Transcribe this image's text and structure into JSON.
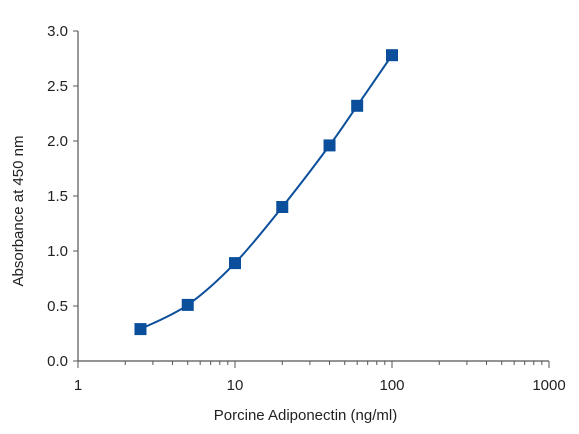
{
  "chart_data": {
    "type": "scatter",
    "title": "",
    "xlabel": "Porcine Adiponectin (ng/ml)",
    "ylabel": "Absorbance at 450 nm",
    "x_scale": "log",
    "xlim": [
      1,
      1000
    ],
    "ylim": [
      0,
      3.0
    ],
    "x_ticks": [
      1,
      10,
      100,
      1000
    ],
    "x_tick_labels": [
      "1",
      "10",
      "100",
      "1000"
    ],
    "y_ticks": [
      0,
      0.5,
      1.0,
      1.5,
      2.0,
      2.5,
      3.0
    ],
    "y_tick_labels": [
      "0.0",
      "0.5",
      "1.0",
      "1.5",
      "2.0",
      "2.5",
      "3.0"
    ],
    "grid": false,
    "series": [
      {
        "x": [
          2.5,
          5,
          10,
          20,
          40,
          60,
          100
        ],
        "y": [
          0.29,
          0.51,
          0.89,
          1.4,
          1.96,
          2.32,
          2.78
        ],
        "marker": "square",
        "fit_curve": true,
        "color": "#0b4f9c"
      }
    ]
  }
}
